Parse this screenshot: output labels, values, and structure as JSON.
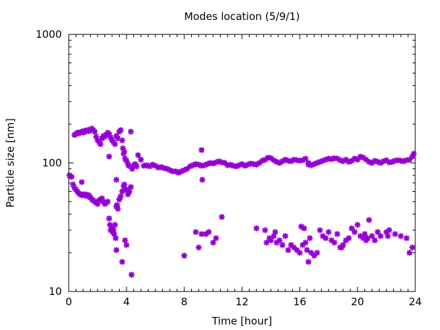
{
  "chart_data": {
    "type": "scatter",
    "title": "Modes location (5/9/1)",
    "xlabel": "Time [hour]",
    "ylabel": "Particle size [nm]",
    "xlim": [
      0,
      24
    ],
    "ylim": [
      10,
      1000
    ],
    "yscale": "log",
    "grid": false,
    "legend": "none",
    "marker": "star",
    "color": "#9400d3",
    "xticks": [
      0,
      4,
      8,
      12,
      16,
      20,
      24
    ],
    "yticks": [
      10,
      100,
      1000
    ],
    "series": [
      {
        "points": [
          [
            0.05,
            80
          ],
          [
            0.2,
            78
          ],
          [
            0.3,
            68
          ],
          [
            0.4,
            64
          ],
          [
            0.5,
            62
          ],
          [
            0.6,
            60
          ],
          [
            0.7,
            58
          ],
          [
            0.8,
            57
          ],
          [
            0.9,
            56
          ],
          [
            1.0,
            57
          ],
          [
            1.1,
            56
          ],
          [
            1.2,
            57
          ],
          [
            1.3,
            55
          ],
          [
            1.4,
            56
          ],
          [
            1.5,
            54
          ],
          [
            1.6,
            52
          ],
          [
            1.7,
            51
          ],
          [
            1.8,
            50
          ],
          [
            1.9,
            49
          ],
          [
            2.0,
            48
          ],
          [
            2.1,
            51
          ],
          [
            2.2,
            52
          ],
          [
            2.3,
            53
          ],
          [
            2.4,
            50
          ],
          [
            2.5,
            48
          ],
          [
            2.6,
            49
          ],
          [
            2.7,
            50
          ],
          [
            0.9,
            71
          ],
          [
            2.8,
            37
          ],
          [
            2.85,
            33
          ],
          [
            2.9,
            30
          ],
          [
            3.0,
            31
          ],
          [
            3.05,
            29
          ],
          [
            3.1,
            30
          ],
          [
            3.15,
            28
          ],
          [
            3.2,
            33
          ],
          [
            3.25,
            26
          ],
          [
            3.3,
            21
          ],
          [
            3.35,
            47
          ],
          [
            3.4,
            44
          ],
          [
            3.5,
            52
          ],
          [
            3.6,
            55
          ],
          [
            3.7,
            60
          ],
          [
            3.8,
            66
          ],
          [
            3.85,
            68
          ],
          [
            3.9,
            62
          ],
          [
            4.0,
            62
          ],
          [
            4.1,
            57
          ],
          [
            4.2,
            60
          ],
          [
            4.3,
            65
          ],
          [
            3.3,
            74
          ],
          [
            3.7,
            17
          ],
          [
            3.9,
            25
          ],
          [
            4.0,
            23
          ],
          [
            4.35,
            13.5
          ],
          [
            3.3,
            46
          ],
          [
            0.4,
            165
          ],
          [
            0.5,
            168
          ],
          [
            0.6,
            172
          ],
          [
            0.7,
            170
          ],
          [
            0.8,
            173
          ],
          [
            0.9,
            175
          ],
          [
            1.0,
            172
          ],
          [
            1.1,
            178
          ],
          [
            1.2,
            176
          ],
          [
            1.3,
            180
          ],
          [
            1.4,
            177
          ],
          [
            1.5,
            182
          ],
          [
            1.6,
            185
          ],
          [
            1.7,
            180
          ],
          [
            1.8,
            175
          ],
          [
            1.9,
            160
          ],
          [
            2.0,
            150
          ],
          [
            2.1,
            145
          ],
          [
            2.2,
            140
          ],
          [
            2.3,
            155
          ],
          [
            2.4,
            162
          ],
          [
            2.5,
            160
          ],
          [
            2.6,
            166
          ],
          [
            2.7,
            172
          ],
          [
            2.8,
            168
          ],
          [
            2.9,
            158
          ],
          [
            3.0,
            150
          ],
          [
            3.1,
            145
          ],
          [
            3.2,
            140
          ],
          [
            3.3,
            162
          ],
          [
            3.4,
            155
          ],
          [
            3.5,
            175
          ],
          [
            3.6,
            180
          ],
          [
            3.7,
            150
          ],
          [
            3.75,
            130
          ],
          [
            3.8,
            118
          ],
          [
            3.85,
            122
          ],
          [
            3.9,
            108
          ],
          [
            4.0,
            104
          ],
          [
            4.1,
            98
          ],
          [
            4.15,
            95
          ],
          [
            4.3,
            175
          ],
          [
            4.4,
            90
          ],
          [
            4.5,
            96
          ],
          [
            4.6,
            98
          ],
          [
            4.7,
            94
          ],
          [
            4.8,
            115
          ],
          [
            5.0,
            106
          ],
          [
            5.2,
            95
          ],
          [
            2.8,
            112
          ],
          [
            5.4,
            96
          ],
          [
            5.6,
            94
          ],
          [
            5.8,
            97
          ],
          [
            6.0,
            95
          ],
          [
            6.2,
            92
          ],
          [
            6.4,
            93
          ],
          [
            6.6,
            91
          ],
          [
            6.8,
            90
          ],
          [
            7.0,
            88
          ],
          [
            7.2,
            86
          ],
          [
            7.4,
            86
          ],
          [
            7.6,
            84
          ],
          [
            7.8,
            86
          ],
          [
            8.0,
            88
          ],
          [
            8.2,
            90
          ],
          [
            8.4,
            94
          ],
          [
            8.6,
            96
          ],
          [
            8.8,
            98
          ],
          [
            9.0,
            97
          ],
          [
            9.2,
            95
          ],
          [
            9.4,
            96
          ],
          [
            9.6,
            98
          ],
          [
            9.8,
            100
          ],
          [
            10.0,
            99
          ],
          [
            10.2,
            101
          ],
          [
            10.4,
            103
          ],
          [
            10.6,
            101
          ],
          [
            10.8,
            100
          ],
          [
            11.0,
            96
          ],
          [
            11.2,
            97
          ],
          [
            11.4,
            95
          ],
          [
            11.6,
            94
          ],
          [
            11.8,
            96
          ],
          [
            12.0,
            98
          ],
          [
            12.2,
            95
          ],
          [
            12.4,
            97
          ],
          [
            12.6,
            99
          ],
          [
            12.8,
            98
          ],
          [
            13.0,
            97
          ],
          [
            13.2,
            100
          ],
          [
            13.4,
            104
          ],
          [
            13.6,
            106
          ],
          [
            13.8,
            110
          ],
          [
            14.0,
            109
          ],
          [
            14.2,
            105
          ],
          [
            14.4,
            102
          ],
          [
            14.6,
            100
          ],
          [
            14.8,
            103
          ],
          [
            15.0,
            106
          ],
          [
            15.2,
            104
          ],
          [
            15.4,
            103
          ],
          [
            15.6,
            106
          ],
          [
            15.8,
            105
          ],
          [
            16.0,
            104
          ],
          [
            16.2,
            105
          ],
          [
            16.4,
            108
          ],
          [
            16.6,
            100
          ],
          [
            16.8,
            96
          ],
          [
            17.0,
            98
          ],
          [
            17.2,
            100
          ],
          [
            17.4,
            102
          ],
          [
            17.6,
            104
          ],
          [
            17.8,
            106
          ],
          [
            18.0,
            108
          ],
          [
            18.2,
            107
          ],
          [
            18.4,
            109
          ],
          [
            18.6,
            108
          ],
          [
            18.8,
            105
          ],
          [
            19.0,
            103
          ],
          [
            19.2,
            106
          ],
          [
            19.4,
            102
          ],
          [
            19.6,
            104
          ],
          [
            19.8,
            108
          ],
          [
            20.0,
            106
          ],
          [
            20.2,
            112
          ],
          [
            20.4,
            110
          ],
          [
            20.6,
            106
          ],
          [
            20.8,
            102
          ],
          [
            21.0,
            100
          ],
          [
            21.2,
            104
          ],
          [
            21.4,
            102
          ],
          [
            21.6,
            100
          ],
          [
            21.8,
            103
          ],
          [
            22.0,
            105
          ],
          [
            22.2,
            101
          ],
          [
            22.4,
            102
          ],
          [
            22.6,
            104
          ],
          [
            22.8,
            105
          ],
          [
            23.0,
            104
          ],
          [
            23.2,
            103
          ],
          [
            23.4,
            105
          ],
          [
            23.6,
            106
          ],
          [
            23.8,
            112
          ],
          [
            23.9,
            118
          ],
          [
            9.2,
            126
          ],
          [
            16.6,
            97
          ],
          [
            8.0,
            19
          ],
          [
            8.8,
            29
          ],
          [
            9.0,
            22
          ],
          [
            9.2,
            28
          ],
          [
            9.25,
            74
          ],
          [
            9.5,
            28
          ],
          [
            9.7,
            29
          ],
          [
            10.0,
            24
          ],
          [
            10.2,
            26
          ],
          [
            10.6,
            38
          ],
          [
            13.0,
            31
          ],
          [
            13.6,
            30
          ],
          [
            13.7,
            24
          ],
          [
            13.9,
            26
          ],
          [
            14.0,
            25
          ],
          [
            14.2,
            27
          ],
          [
            14.3,
            29
          ],
          [
            14.4,
            24
          ],
          [
            14.6,
            25
          ],
          [
            14.8,
            23
          ],
          [
            15.0,
            27
          ],
          [
            15.2,
            21
          ],
          [
            15.4,
            23
          ],
          [
            15.6,
            22
          ],
          [
            15.8,
            21
          ],
          [
            16.0,
            20
          ],
          [
            16.1,
            32
          ],
          [
            16.2,
            23
          ],
          [
            16.3,
            31
          ],
          [
            16.5,
            21
          ],
          [
            16.6,
            17
          ],
          [
            16.7,
            26
          ],
          [
            16.8,
            20
          ],
          [
            17.0,
            19
          ],
          [
            17.2,
            20
          ],
          [
            17.4,
            30
          ],
          [
            17.6,
            27
          ],
          [
            17.8,
            26
          ],
          [
            18.0,
            29
          ],
          [
            18.2,
            25
          ],
          [
            18.4,
            24
          ],
          [
            18.6,
            28
          ],
          [
            18.8,
            22
          ],
          [
            19.0,
            23
          ],
          [
            19.2,
            25
          ],
          [
            19.4,
            26
          ],
          [
            19.6,
            31
          ],
          [
            19.8,
            29
          ],
          [
            20.0,
            33
          ],
          [
            20.2,
            27
          ],
          [
            20.4,
            26
          ],
          [
            20.6,
            25
          ],
          [
            20.8,
            36
          ],
          [
            21.0,
            27
          ],
          [
            21.2,
            25
          ],
          [
            21.4,
            29
          ],
          [
            21.6,
            27
          ],
          [
            22.0,
            29
          ],
          [
            22.2,
            30
          ],
          [
            22.6,
            28
          ],
          [
            23.0,
            27
          ],
          [
            23.4,
            26
          ],
          [
            23.6,
            20
          ],
          [
            23.8,
            22
          ],
          [
            16.4,
            24
          ],
          [
            20.5,
            28
          ],
          [
            20.7,
            26
          ],
          [
            18.9,
            22
          ],
          [
            22.1,
            27
          ]
        ]
      }
    ]
  }
}
